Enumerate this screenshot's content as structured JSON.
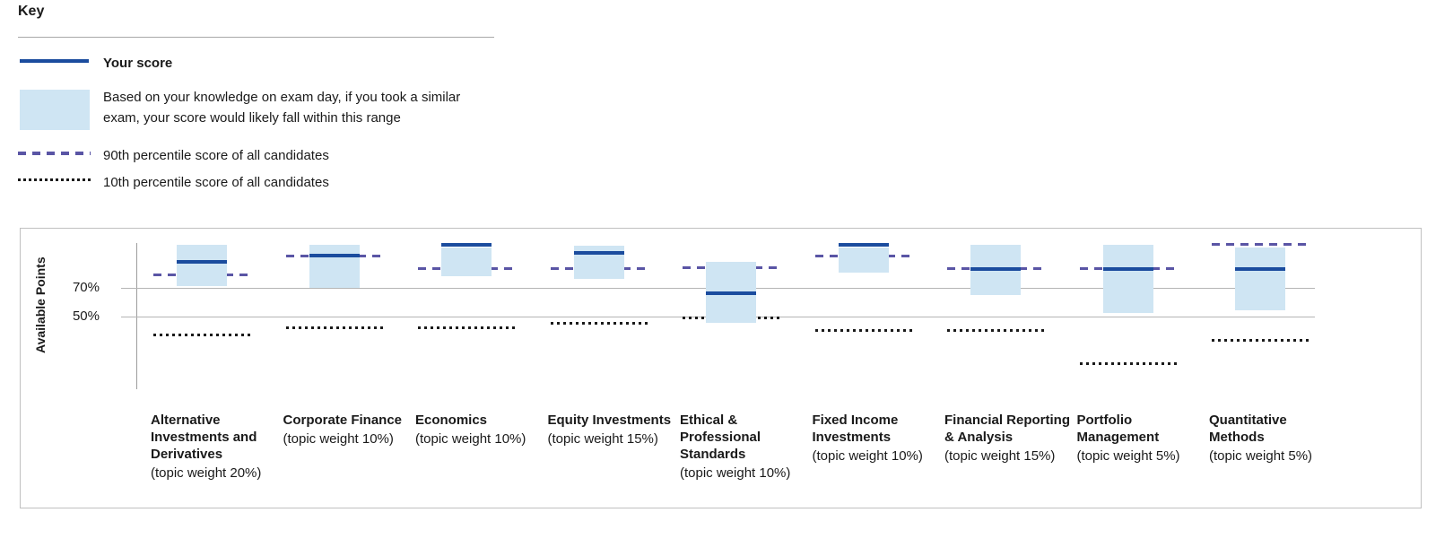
{
  "key": {
    "title": "Key",
    "your_score_label": "Your score",
    "range_label": "Based on your knowledge on exam day, if you took a similar exam, your score would likely fall within this range",
    "p90_label": "90th percentile score of all candidates",
    "p10_label": "10th percentile score of all candidates"
  },
  "chart_data": {
    "type": "range-bar",
    "ylabel": "Available Points",
    "ylim": [
      0,
      100
    ],
    "grid": "horizontal-only",
    "gridlines": [
      {
        "pct": 70,
        "label": "70%"
      },
      {
        "pct": 50,
        "label": "50%"
      }
    ],
    "categories": [
      "Alternative Investments and Derivatives",
      "Corporate Finance",
      "Economics",
      "Equity Investments",
      "Ethical & Professional Standards",
      "Fixed Income Investments",
      "Financial Reporting & Analysis",
      "Portfolio Management",
      "Quantitative Methods"
    ],
    "weight_labels": [
      "(topic weight 20%)",
      "(topic weight 10%)",
      "(topic weight 10%)",
      "(topic weight 15%)",
      "(topic weight 10%)",
      "(topic weight 10%)",
      "(topic weight 15%)",
      "(topic weight 5%)",
      "(topic weight 5%)"
    ],
    "series": [
      {
        "name": "Your score",
        "values": [
          88,
          92,
          100,
          94,
          66,
          100,
          83,
          83,
          83
        ]
      },
      {
        "name": "Likely range low",
        "values": [
          71,
          70,
          78,
          76,
          45,
          80,
          65,
          52,
          54
        ]
      },
      {
        "name": "Likely range high",
        "values": [
          100,
          100,
          98,
          99,
          88,
          98,
          100,
          100,
          98
        ]
      },
      {
        "name": "90th percentile score of all candidates",
        "values": [
          79,
          92,
          83,
          83,
          84,
          92,
          83,
          83,
          100
        ]
      },
      {
        "name": "10th percentile score of all candidates",
        "values": [
          37,
          42,
          42,
          45,
          49,
          40,
          40,
          17,
          33
        ]
      }
    ],
    "colors": {
      "score_line": "#1b4c9e",
      "range_band": "#cfe5f3",
      "p90_dashed": "#5a55a5",
      "p10_dotted": "#1a1a1a",
      "gridline": "#b5b5b5"
    }
  }
}
